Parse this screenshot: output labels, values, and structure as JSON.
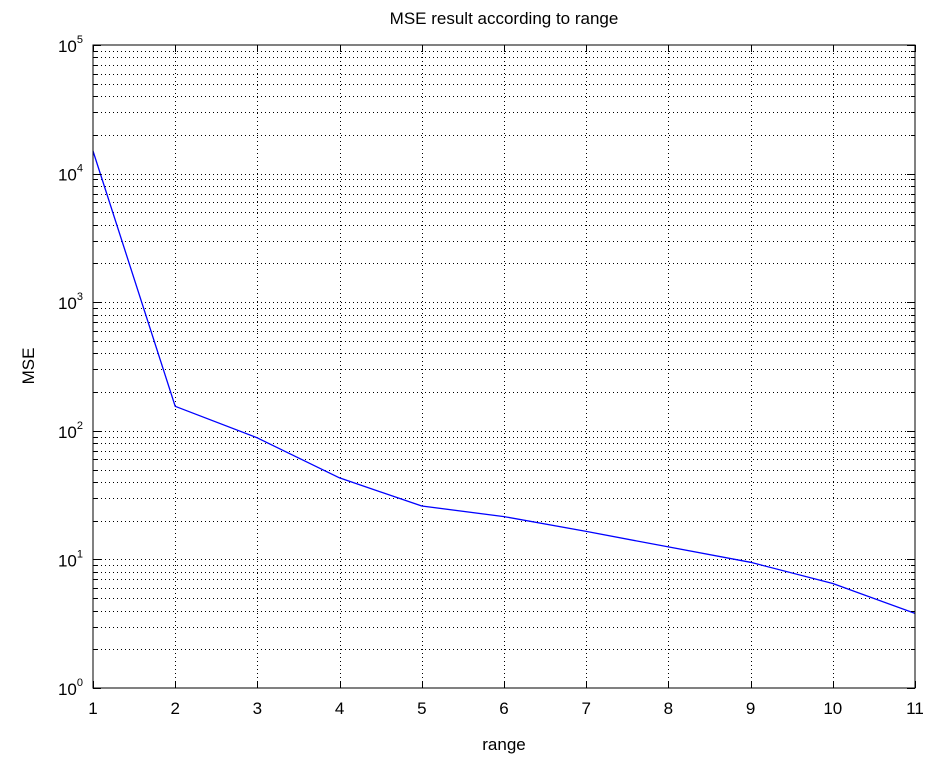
{
  "chart_data": {
    "type": "line",
    "title": "MSE result according to range",
    "xlabel": "range",
    "ylabel": "MSE",
    "xlim": [
      1,
      11
    ],
    "ylim": [
      1,
      100000
    ],
    "yscale": "log",
    "grid": true,
    "x_ticks": [
      "1",
      "2",
      "3",
      "4",
      "5",
      "6",
      "7",
      "8",
      "9",
      "10",
      "11"
    ],
    "y_ticks": [
      {
        "base": "10",
        "exp": "0"
      },
      {
        "base": "10",
        "exp": "1"
      },
      {
        "base": "10",
        "exp": "2"
      },
      {
        "base": "10",
        "exp": "3"
      },
      {
        "base": "10",
        "exp": "4"
      },
      {
        "base": "10",
        "exp": "5"
      }
    ],
    "series": [
      {
        "color": "#0000ff",
        "x": [
          1,
          2,
          3,
          4,
          5,
          6,
          7,
          8,
          9,
          10,
          11
        ],
        "values": [
          15000,
          155,
          88,
          43,
          26,
          21.5,
          16.5,
          12.5,
          9.5,
          6.5,
          3.8
        ]
      }
    ]
  }
}
